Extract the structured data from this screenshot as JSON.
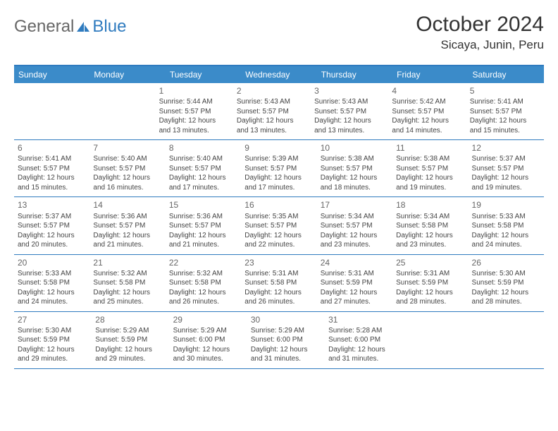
{
  "logo": {
    "part1": "General",
    "part2": "Blue"
  },
  "title": "October 2024",
  "location": "Sicaya, Junin, Peru",
  "colors": {
    "header_bg": "#3b8bc9",
    "border": "#2f7bbf",
    "text": "#333333",
    "subtle": "#666666",
    "logo_blue": "#2f7bbf",
    "logo_gray": "#666666",
    "white": "#ffffff"
  },
  "typography": {
    "title_fontsize": 30,
    "location_fontsize": 17,
    "weekday_fontsize": 12,
    "daynum_fontsize": 12,
    "body_fontsize": 10
  },
  "weekdays": [
    "Sunday",
    "Monday",
    "Tuesday",
    "Wednesday",
    "Thursday",
    "Friday",
    "Saturday"
  ],
  "weeks": [
    [
      null,
      null,
      {
        "n": "1",
        "sr": "Sunrise: 5:44 AM",
        "ss": "Sunset: 5:57 PM",
        "d1": "Daylight: 12 hours",
        "d2": "and 13 minutes."
      },
      {
        "n": "2",
        "sr": "Sunrise: 5:43 AM",
        "ss": "Sunset: 5:57 PM",
        "d1": "Daylight: 12 hours",
        "d2": "and 13 minutes."
      },
      {
        "n": "3",
        "sr": "Sunrise: 5:43 AM",
        "ss": "Sunset: 5:57 PM",
        "d1": "Daylight: 12 hours",
        "d2": "and 13 minutes."
      },
      {
        "n": "4",
        "sr": "Sunrise: 5:42 AM",
        "ss": "Sunset: 5:57 PM",
        "d1": "Daylight: 12 hours",
        "d2": "and 14 minutes."
      },
      {
        "n": "5",
        "sr": "Sunrise: 5:41 AM",
        "ss": "Sunset: 5:57 PM",
        "d1": "Daylight: 12 hours",
        "d2": "and 15 minutes."
      }
    ],
    [
      {
        "n": "6",
        "sr": "Sunrise: 5:41 AM",
        "ss": "Sunset: 5:57 PM",
        "d1": "Daylight: 12 hours",
        "d2": "and 15 minutes."
      },
      {
        "n": "7",
        "sr": "Sunrise: 5:40 AM",
        "ss": "Sunset: 5:57 PM",
        "d1": "Daylight: 12 hours",
        "d2": "and 16 minutes."
      },
      {
        "n": "8",
        "sr": "Sunrise: 5:40 AM",
        "ss": "Sunset: 5:57 PM",
        "d1": "Daylight: 12 hours",
        "d2": "and 17 minutes."
      },
      {
        "n": "9",
        "sr": "Sunrise: 5:39 AM",
        "ss": "Sunset: 5:57 PM",
        "d1": "Daylight: 12 hours",
        "d2": "and 17 minutes."
      },
      {
        "n": "10",
        "sr": "Sunrise: 5:38 AM",
        "ss": "Sunset: 5:57 PM",
        "d1": "Daylight: 12 hours",
        "d2": "and 18 minutes."
      },
      {
        "n": "11",
        "sr": "Sunrise: 5:38 AM",
        "ss": "Sunset: 5:57 PM",
        "d1": "Daylight: 12 hours",
        "d2": "and 19 minutes."
      },
      {
        "n": "12",
        "sr": "Sunrise: 5:37 AM",
        "ss": "Sunset: 5:57 PM",
        "d1": "Daylight: 12 hours",
        "d2": "and 19 minutes."
      }
    ],
    [
      {
        "n": "13",
        "sr": "Sunrise: 5:37 AM",
        "ss": "Sunset: 5:57 PM",
        "d1": "Daylight: 12 hours",
        "d2": "and 20 minutes."
      },
      {
        "n": "14",
        "sr": "Sunrise: 5:36 AM",
        "ss": "Sunset: 5:57 PM",
        "d1": "Daylight: 12 hours",
        "d2": "and 21 minutes."
      },
      {
        "n": "15",
        "sr": "Sunrise: 5:36 AM",
        "ss": "Sunset: 5:57 PM",
        "d1": "Daylight: 12 hours",
        "d2": "and 21 minutes."
      },
      {
        "n": "16",
        "sr": "Sunrise: 5:35 AM",
        "ss": "Sunset: 5:57 PM",
        "d1": "Daylight: 12 hours",
        "d2": "and 22 minutes."
      },
      {
        "n": "17",
        "sr": "Sunrise: 5:34 AM",
        "ss": "Sunset: 5:57 PM",
        "d1": "Daylight: 12 hours",
        "d2": "and 23 minutes."
      },
      {
        "n": "18",
        "sr": "Sunrise: 5:34 AM",
        "ss": "Sunset: 5:58 PM",
        "d1": "Daylight: 12 hours",
        "d2": "and 23 minutes."
      },
      {
        "n": "19",
        "sr": "Sunrise: 5:33 AM",
        "ss": "Sunset: 5:58 PM",
        "d1": "Daylight: 12 hours",
        "d2": "and 24 minutes."
      }
    ],
    [
      {
        "n": "20",
        "sr": "Sunrise: 5:33 AM",
        "ss": "Sunset: 5:58 PM",
        "d1": "Daylight: 12 hours",
        "d2": "and 24 minutes."
      },
      {
        "n": "21",
        "sr": "Sunrise: 5:32 AM",
        "ss": "Sunset: 5:58 PM",
        "d1": "Daylight: 12 hours",
        "d2": "and 25 minutes."
      },
      {
        "n": "22",
        "sr": "Sunrise: 5:32 AM",
        "ss": "Sunset: 5:58 PM",
        "d1": "Daylight: 12 hours",
        "d2": "and 26 minutes."
      },
      {
        "n": "23",
        "sr": "Sunrise: 5:31 AM",
        "ss": "Sunset: 5:58 PM",
        "d1": "Daylight: 12 hours",
        "d2": "and 26 minutes."
      },
      {
        "n": "24",
        "sr": "Sunrise: 5:31 AM",
        "ss": "Sunset: 5:59 PM",
        "d1": "Daylight: 12 hours",
        "d2": "and 27 minutes."
      },
      {
        "n": "25",
        "sr": "Sunrise: 5:31 AM",
        "ss": "Sunset: 5:59 PM",
        "d1": "Daylight: 12 hours",
        "d2": "and 28 minutes."
      },
      {
        "n": "26",
        "sr": "Sunrise: 5:30 AM",
        "ss": "Sunset: 5:59 PM",
        "d1": "Daylight: 12 hours",
        "d2": "and 28 minutes."
      }
    ],
    [
      {
        "n": "27",
        "sr": "Sunrise: 5:30 AM",
        "ss": "Sunset: 5:59 PM",
        "d1": "Daylight: 12 hours",
        "d2": "and 29 minutes."
      },
      {
        "n": "28",
        "sr": "Sunrise: 5:29 AM",
        "ss": "Sunset: 5:59 PM",
        "d1": "Daylight: 12 hours",
        "d2": "and 29 minutes."
      },
      {
        "n": "29",
        "sr": "Sunrise: 5:29 AM",
        "ss": "Sunset: 6:00 PM",
        "d1": "Daylight: 12 hours",
        "d2": "and 30 minutes."
      },
      {
        "n": "30",
        "sr": "Sunrise: 5:29 AM",
        "ss": "Sunset: 6:00 PM",
        "d1": "Daylight: 12 hours",
        "d2": "and 31 minutes."
      },
      {
        "n": "31",
        "sr": "Sunrise: 5:28 AM",
        "ss": "Sunset: 6:00 PM",
        "d1": "Daylight: 12 hours",
        "d2": "and 31 minutes."
      },
      null,
      null
    ]
  ]
}
